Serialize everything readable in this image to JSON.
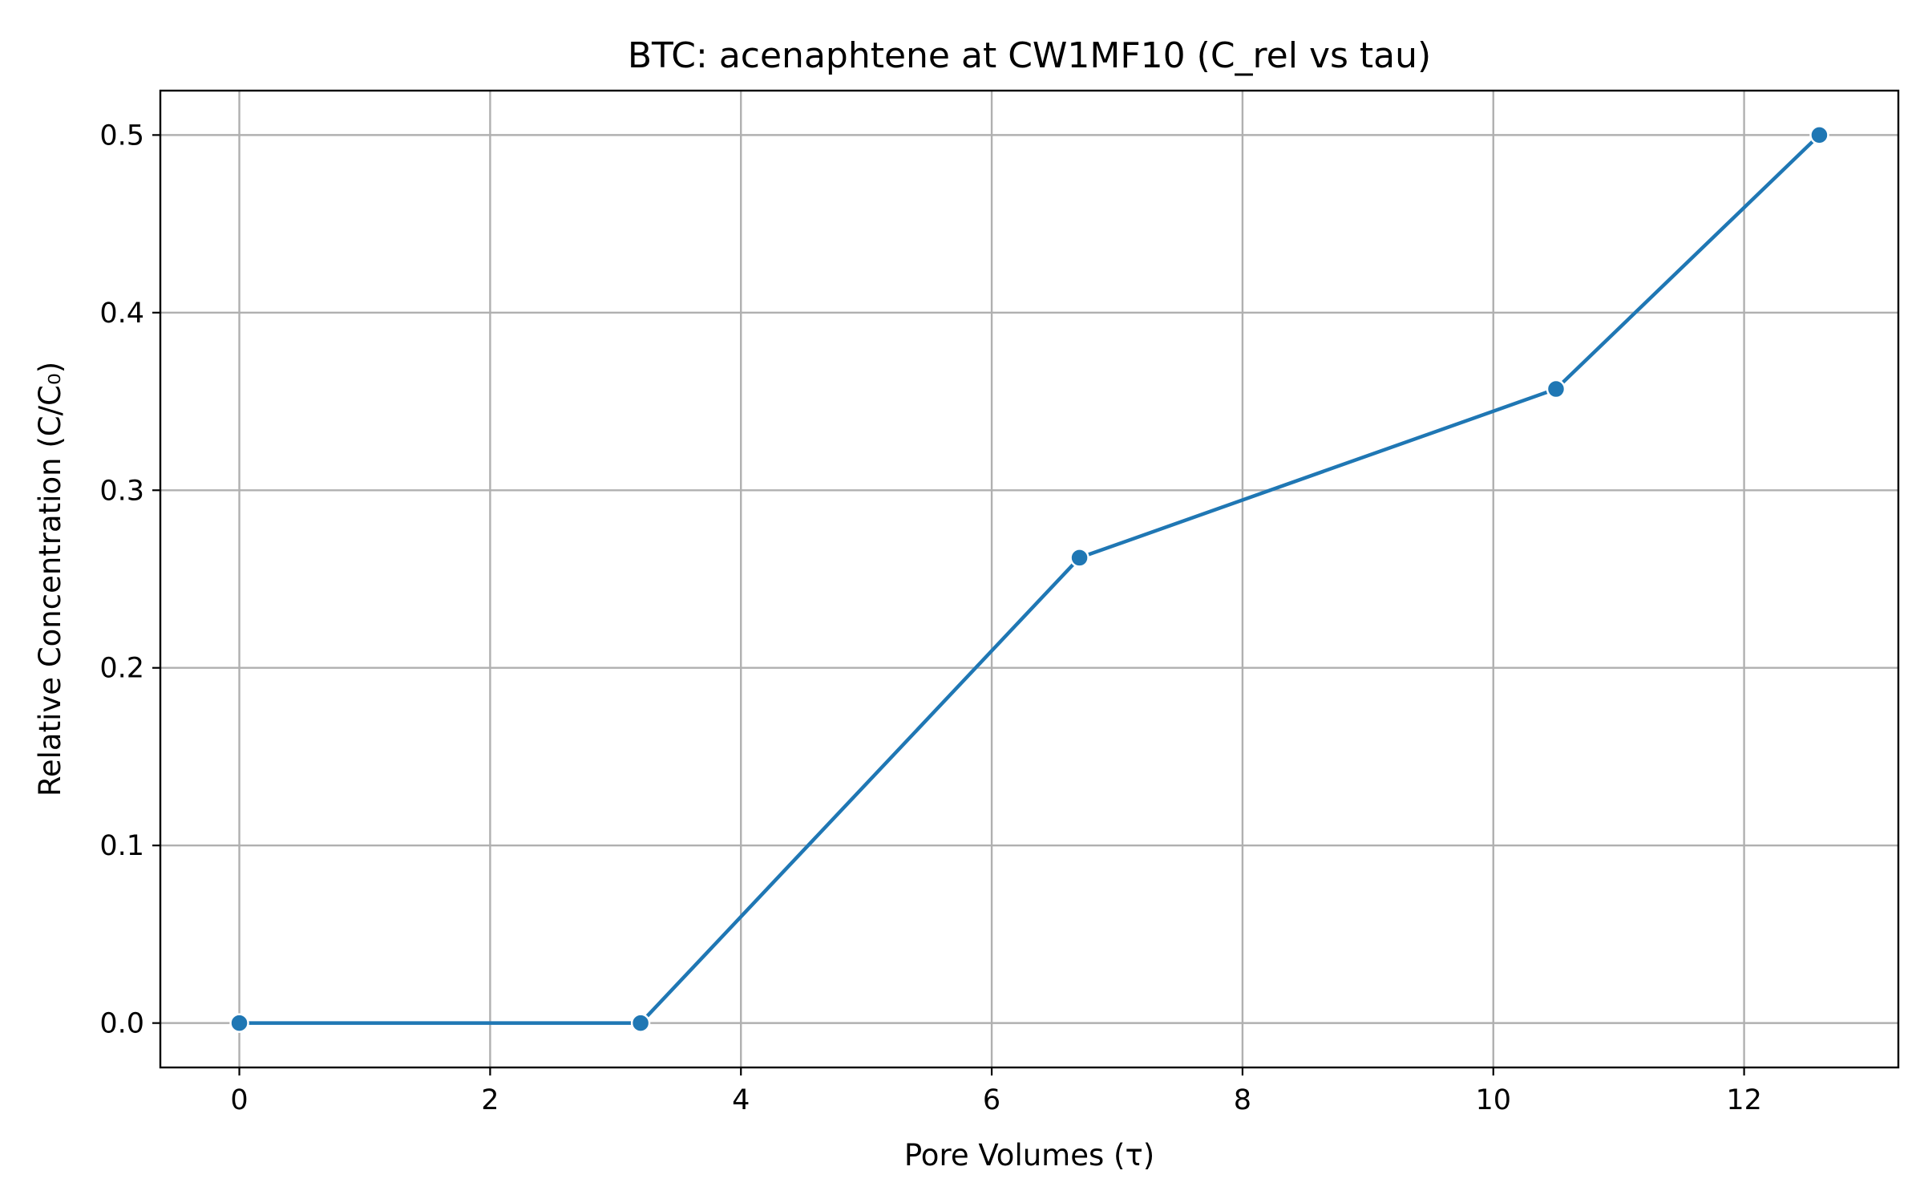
{
  "chart_data": {
    "type": "line",
    "title": "BTC: acenaphtene at CW1MF10 (C_rel vs tau)",
    "xlabel": "Pore Volumes (τ)",
    "ylabel": "Relative Concentration (C/C₀)",
    "xlim": [
      -0.63,
      13.23
    ],
    "ylim": [
      -0.025,
      0.525
    ],
    "xticks": [
      0,
      2,
      4,
      6,
      8,
      10,
      12
    ],
    "xtick_labels": [
      "0",
      "2",
      "4",
      "6",
      "8",
      "10",
      "12"
    ],
    "yticks": [
      0.0,
      0.1,
      0.2,
      0.3,
      0.4,
      0.5
    ],
    "ytick_labels": [
      "0.0",
      "0.1",
      "0.2",
      "0.3",
      "0.4",
      "0.5"
    ],
    "grid": true,
    "marker": "circle",
    "color": "#1f77b4",
    "series": [
      {
        "x": [
          0,
          3.2,
          6.7,
          10.5,
          12.6
        ],
        "y": [
          0.0,
          0.0,
          0.262,
          0.357,
          0.5
        ]
      }
    ]
  }
}
